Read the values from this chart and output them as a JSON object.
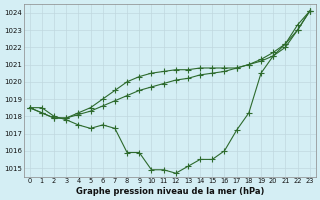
{
  "x": [
    0,
    1,
    2,
    3,
    4,
    5,
    6,
    7,
    8,
    9,
    10,
    11,
    12,
    13,
    14,
    15,
    16,
    17,
    18,
    19,
    20,
    21,
    22,
    23
  ],
  "series1": [
    1018.5,
    1018.5,
    1018.0,
    1017.8,
    1017.5,
    1017.3,
    1017.5,
    1017.3,
    1015.9,
    1015.9,
    1014.9,
    1014.9,
    1014.7,
    1015.1,
    1015.5,
    1015.5,
    1016.0,
    1017.2,
    1018.2,
    1020.5,
    1021.5,
    1022.2,
    1023.3,
    1024.1
  ],
  "series2": [
    1018.5,
    1018.2,
    1017.9,
    1017.9,
    1018.1,
    1018.3,
    1018.6,
    1018.9,
    1019.2,
    1019.5,
    1019.7,
    1019.9,
    1020.1,
    1020.2,
    1020.4,
    1020.5,
    1020.6,
    1020.8,
    1021.0,
    1021.2,
    1021.5,
    1022.0,
    1023.0,
    1024.1
  ],
  "series3": [
    1018.5,
    1018.2,
    1017.9,
    1017.9,
    1018.2,
    1018.5,
    1019.0,
    1019.5,
    1020.0,
    1020.3,
    1020.5,
    1020.6,
    1020.7,
    1020.7,
    1020.8,
    1020.8,
    1020.8,
    1020.8,
    1021.0,
    1021.3,
    1021.7,
    1022.2,
    1023.0,
    1024.1
  ],
  "line_color": "#2d6a2d",
  "bg_color": "#d4eef4",
  "grid_color": "#c0d8df",
  "xlabel": "Graphe pression niveau de la mer (hPa)",
  "ylim": [
    1014.5,
    1024.5
  ],
  "yticks": [
    1015,
    1016,
    1017,
    1018,
    1019,
    1020,
    1021,
    1022,
    1023,
    1024
  ],
  "xticks": [
    0,
    1,
    2,
    3,
    4,
    5,
    6,
    7,
    8,
    9,
    10,
    11,
    12,
    13,
    14,
    15,
    16,
    17,
    18,
    19,
    20,
    21,
    22,
    23
  ]
}
